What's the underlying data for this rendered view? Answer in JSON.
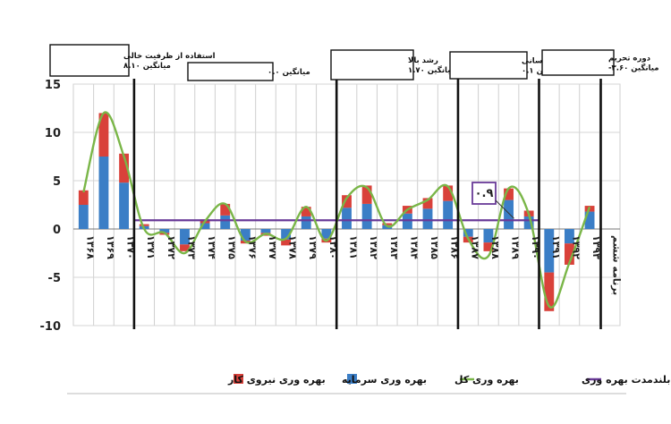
{
  "chart_data": {
    "type": "bar",
    "categories": [
      "۱۳۶۸",
      "۱۳۶۹",
      "۱۳۷۰",
      "۱۳۷۱",
      "۱۳۷۲",
      "۱۳۷۳",
      "۱۳۷۴",
      "۱۳۷۵",
      "۱۳۷۶",
      "۱۳۷۷",
      "۱۳۷۸",
      "۱۳۷۹",
      "۱۳۸۰",
      "۱۳۸۱",
      "۱۳۸۲",
      "۱۳۸۳",
      "۱۳۸۴",
      "۱۳۸۵",
      "۱۳۸۶",
      "۱۳۸۷",
      "۱۳۸۸",
      "۱۳۸۹",
      "۱۳۹۰",
      "۱۳۹۱",
      "۱۳۹۲",
      "۱۳۹۳"
    ],
    "extra_category_label": "برنامه ششم",
    "series": [
      {
        "name": "بهره وری سرمایه",
        "type": "bar",
        "color": "#3b7ec6",
        "values": [
          2.5,
          7.5,
          4.8,
          0.3,
          -0.4,
          -1.6,
          0.6,
          1.4,
          -1.2,
          -0.4,
          -1.1,
          1.3,
          -1.0,
          2.2,
          2.6,
          0.4,
          1.6,
          2.1,
          2.9,
          -0.8,
          -1.4,
          3.0,
          1.3,
          -4.5,
          -1.5,
          1.8
        ]
      },
      {
        "name": "بهره وری نیروی کار",
        "type": "bar",
        "color": "#d9413a",
        "values": [
          1.5,
          4.5,
          3.0,
          0.2,
          -0.2,
          -0.7,
          0.4,
          1.2,
          -0.3,
          -0.3,
          -0.6,
          1.0,
          -0.4,
          1.3,
          1.9,
          0.2,
          0.8,
          1.1,
          1.6,
          -0.6,
          -0.9,
          1.2,
          0.6,
          -4.0,
          -2.2,
          0.6
        ]
      },
      {
        "name": "بهره وری کل",
        "type": "line",
        "color": "#7ab648",
        "values": [
          3.8,
          12.0,
          7.5,
          0.0,
          -0.4,
          -2.5,
          0.8,
          2.6,
          -1.3,
          -0.5,
          -1.0,
          2.3,
          -1.2,
          3.2,
          4.3,
          0.3,
          2.0,
          3.0,
          4.4,
          -1.0,
          -2.8,
          4.2,
          1.5,
          -8.0,
          -3.5,
          2.3
        ]
      },
      {
        "name": "رشد بلندمدت بهره وری",
        "type": "line",
        "color": "#6a3b98",
        "values": [
          null,
          null,
          null,
          0.9,
          0.9,
          0.9,
          0.9,
          0.9,
          0.9,
          0.9,
          0.9,
          0.9,
          0.9,
          0.9,
          0.9,
          0.9,
          0.9,
          0.9,
          0.9,
          0.9,
          0.9,
          0.9,
          0.9,
          null,
          null,
          null
        ]
      }
    ],
    "ylim": [
      -10,
      15
    ],
    "yticks": [
      "15",
      "10",
      "5",
      "0",
      "-5",
      "-10"
    ],
    "grid": true,
    "legend_position": "bottom",
    "callout": "۰.۹",
    "annotations": [
      {
        "lines": [
          "استفاده از ظرفیت خالی",
          "میانگین ۸.۱۰"
        ]
      },
      {
        "lines": [
          "میانگین ۰.۰"
        ]
      },
      {
        "lines": [
          "رشد بالا",
          "میانگین ۱.۷۰"
        ]
      },
      {
        "lines": [
          "رشد   نوسانی",
          "میانگین ۰.۱"
        ]
      },
      {
        "lines": [
          "دوره تحریم",
          "میانگین ۳.۶۰-"
        ]
      }
    ]
  }
}
